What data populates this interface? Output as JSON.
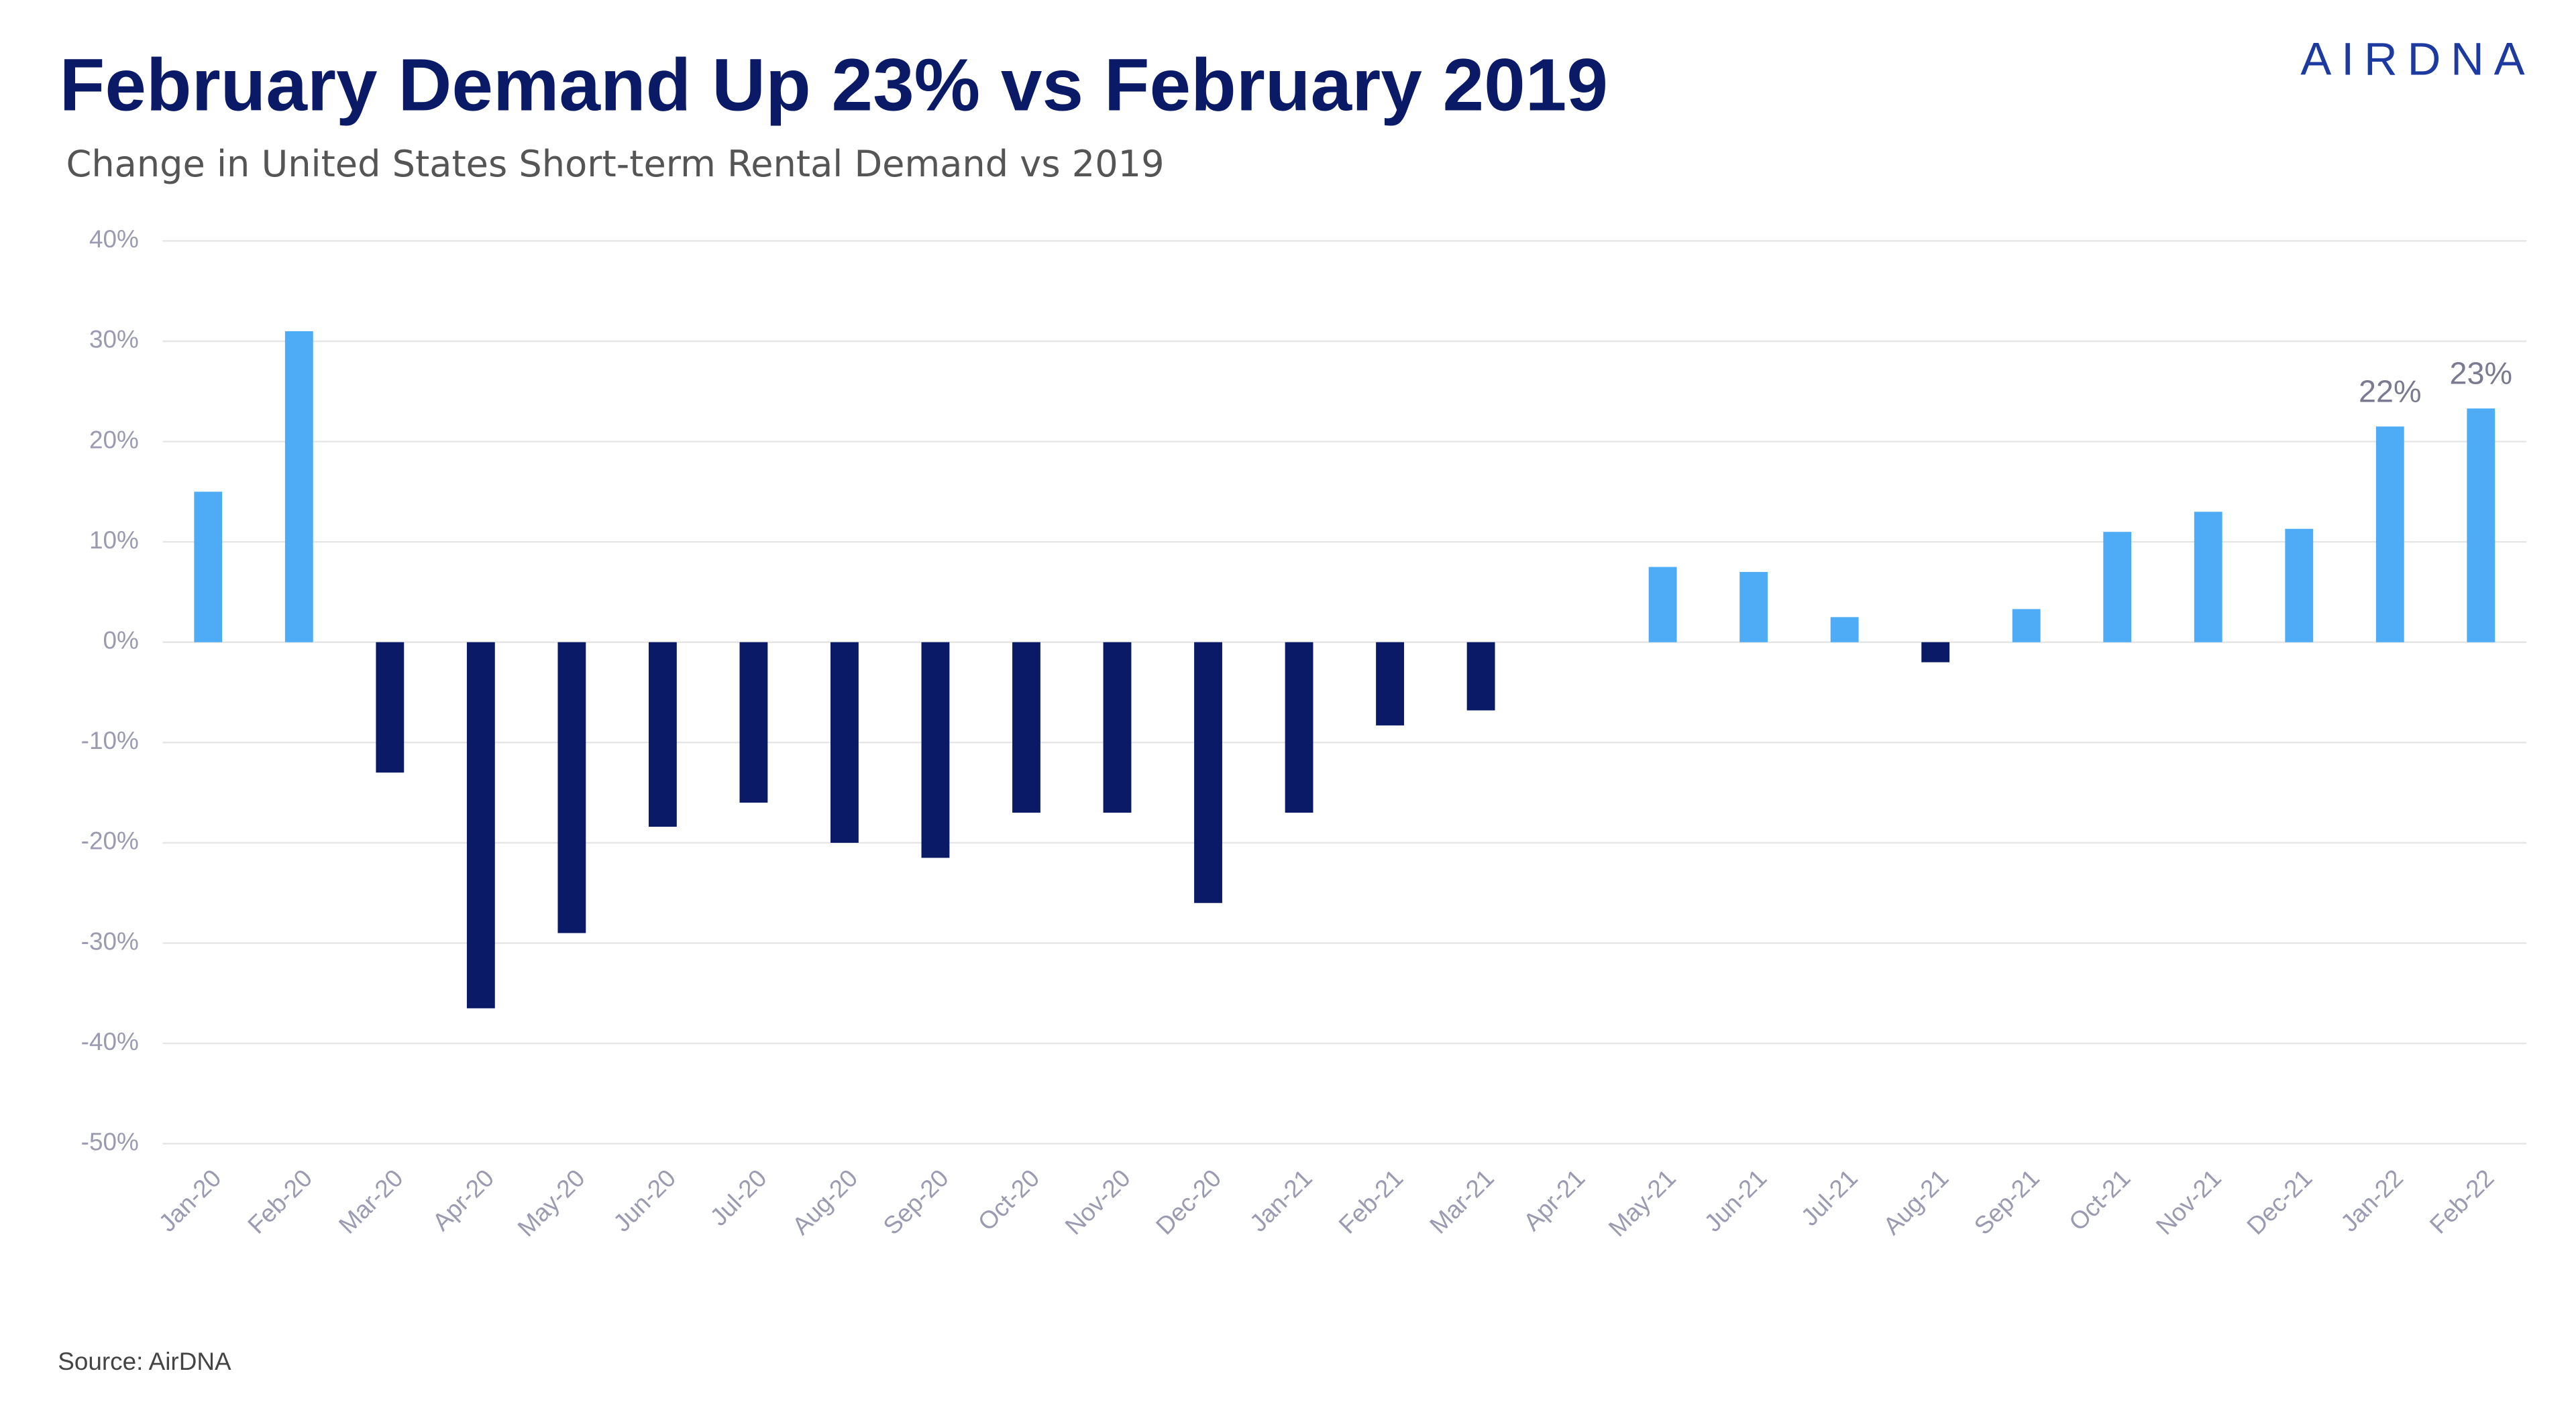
{
  "chart_data": {
    "type": "bar",
    "title": "February Demand Up 23% vs February 2019",
    "subtitle": "Change in United States Short-term Rental Demand vs 2019",
    "logo": "AIRDNA",
    "source": "Source: AirDNA",
    "categories": [
      "Jan-20",
      "Feb-20",
      "Mar-20",
      "Apr-20",
      "May-20",
      "Jun-20",
      "Jul-20",
      "Aug-20",
      "Sep-20",
      "Oct-20",
      "Nov-20",
      "Dec-20",
      "Jan-21",
      "Feb-21",
      "Mar-21",
      "Apr-21",
      "May-21",
      "Jun-21",
      "Jul-21",
      "Aug-21",
      "Sep-21",
      "Oct-21",
      "Nov-21",
      "Dec-21",
      "Jan-22",
      "Feb-22"
    ],
    "values": [
      15,
      31,
      -13,
      -36.5,
      -29,
      -18.4,
      -16,
      -20,
      -21.5,
      -17,
      -17,
      -26,
      -17,
      -8.3,
      -6.8,
      null,
      7.5,
      7,
      2.5,
      -2,
      3.3,
      11,
      13,
      11.3,
      21.5,
      23.3
    ],
    "value_labels": [
      null,
      null,
      null,
      null,
      null,
      null,
      null,
      null,
      null,
      null,
      null,
      null,
      null,
      null,
      null,
      null,
      null,
      null,
      null,
      null,
      null,
      null,
      null,
      null,
      "22%",
      "23%"
    ],
    "positive_color": "#4eabf5",
    "negative_color": "#0b1a66",
    "ylim": [
      -50,
      40
    ],
    "yticks": [
      {
        "value": -50,
        "label": "-50%"
      },
      {
        "value": -40,
        "label": "-40%"
      },
      {
        "value": -30,
        "label": "-30%"
      },
      {
        "value": -20,
        "label": "-20%"
      },
      {
        "value": -10,
        "label": "-10%"
      },
      {
        "value": 0,
        "label": "0%"
      },
      {
        "value": 10,
        "label": "10%"
      },
      {
        "value": 20,
        "label": "20%"
      },
      {
        "value": 30,
        "label": "30%"
      },
      {
        "value": 40,
        "label": "40%"
      }
    ],
    "grid": true
  }
}
